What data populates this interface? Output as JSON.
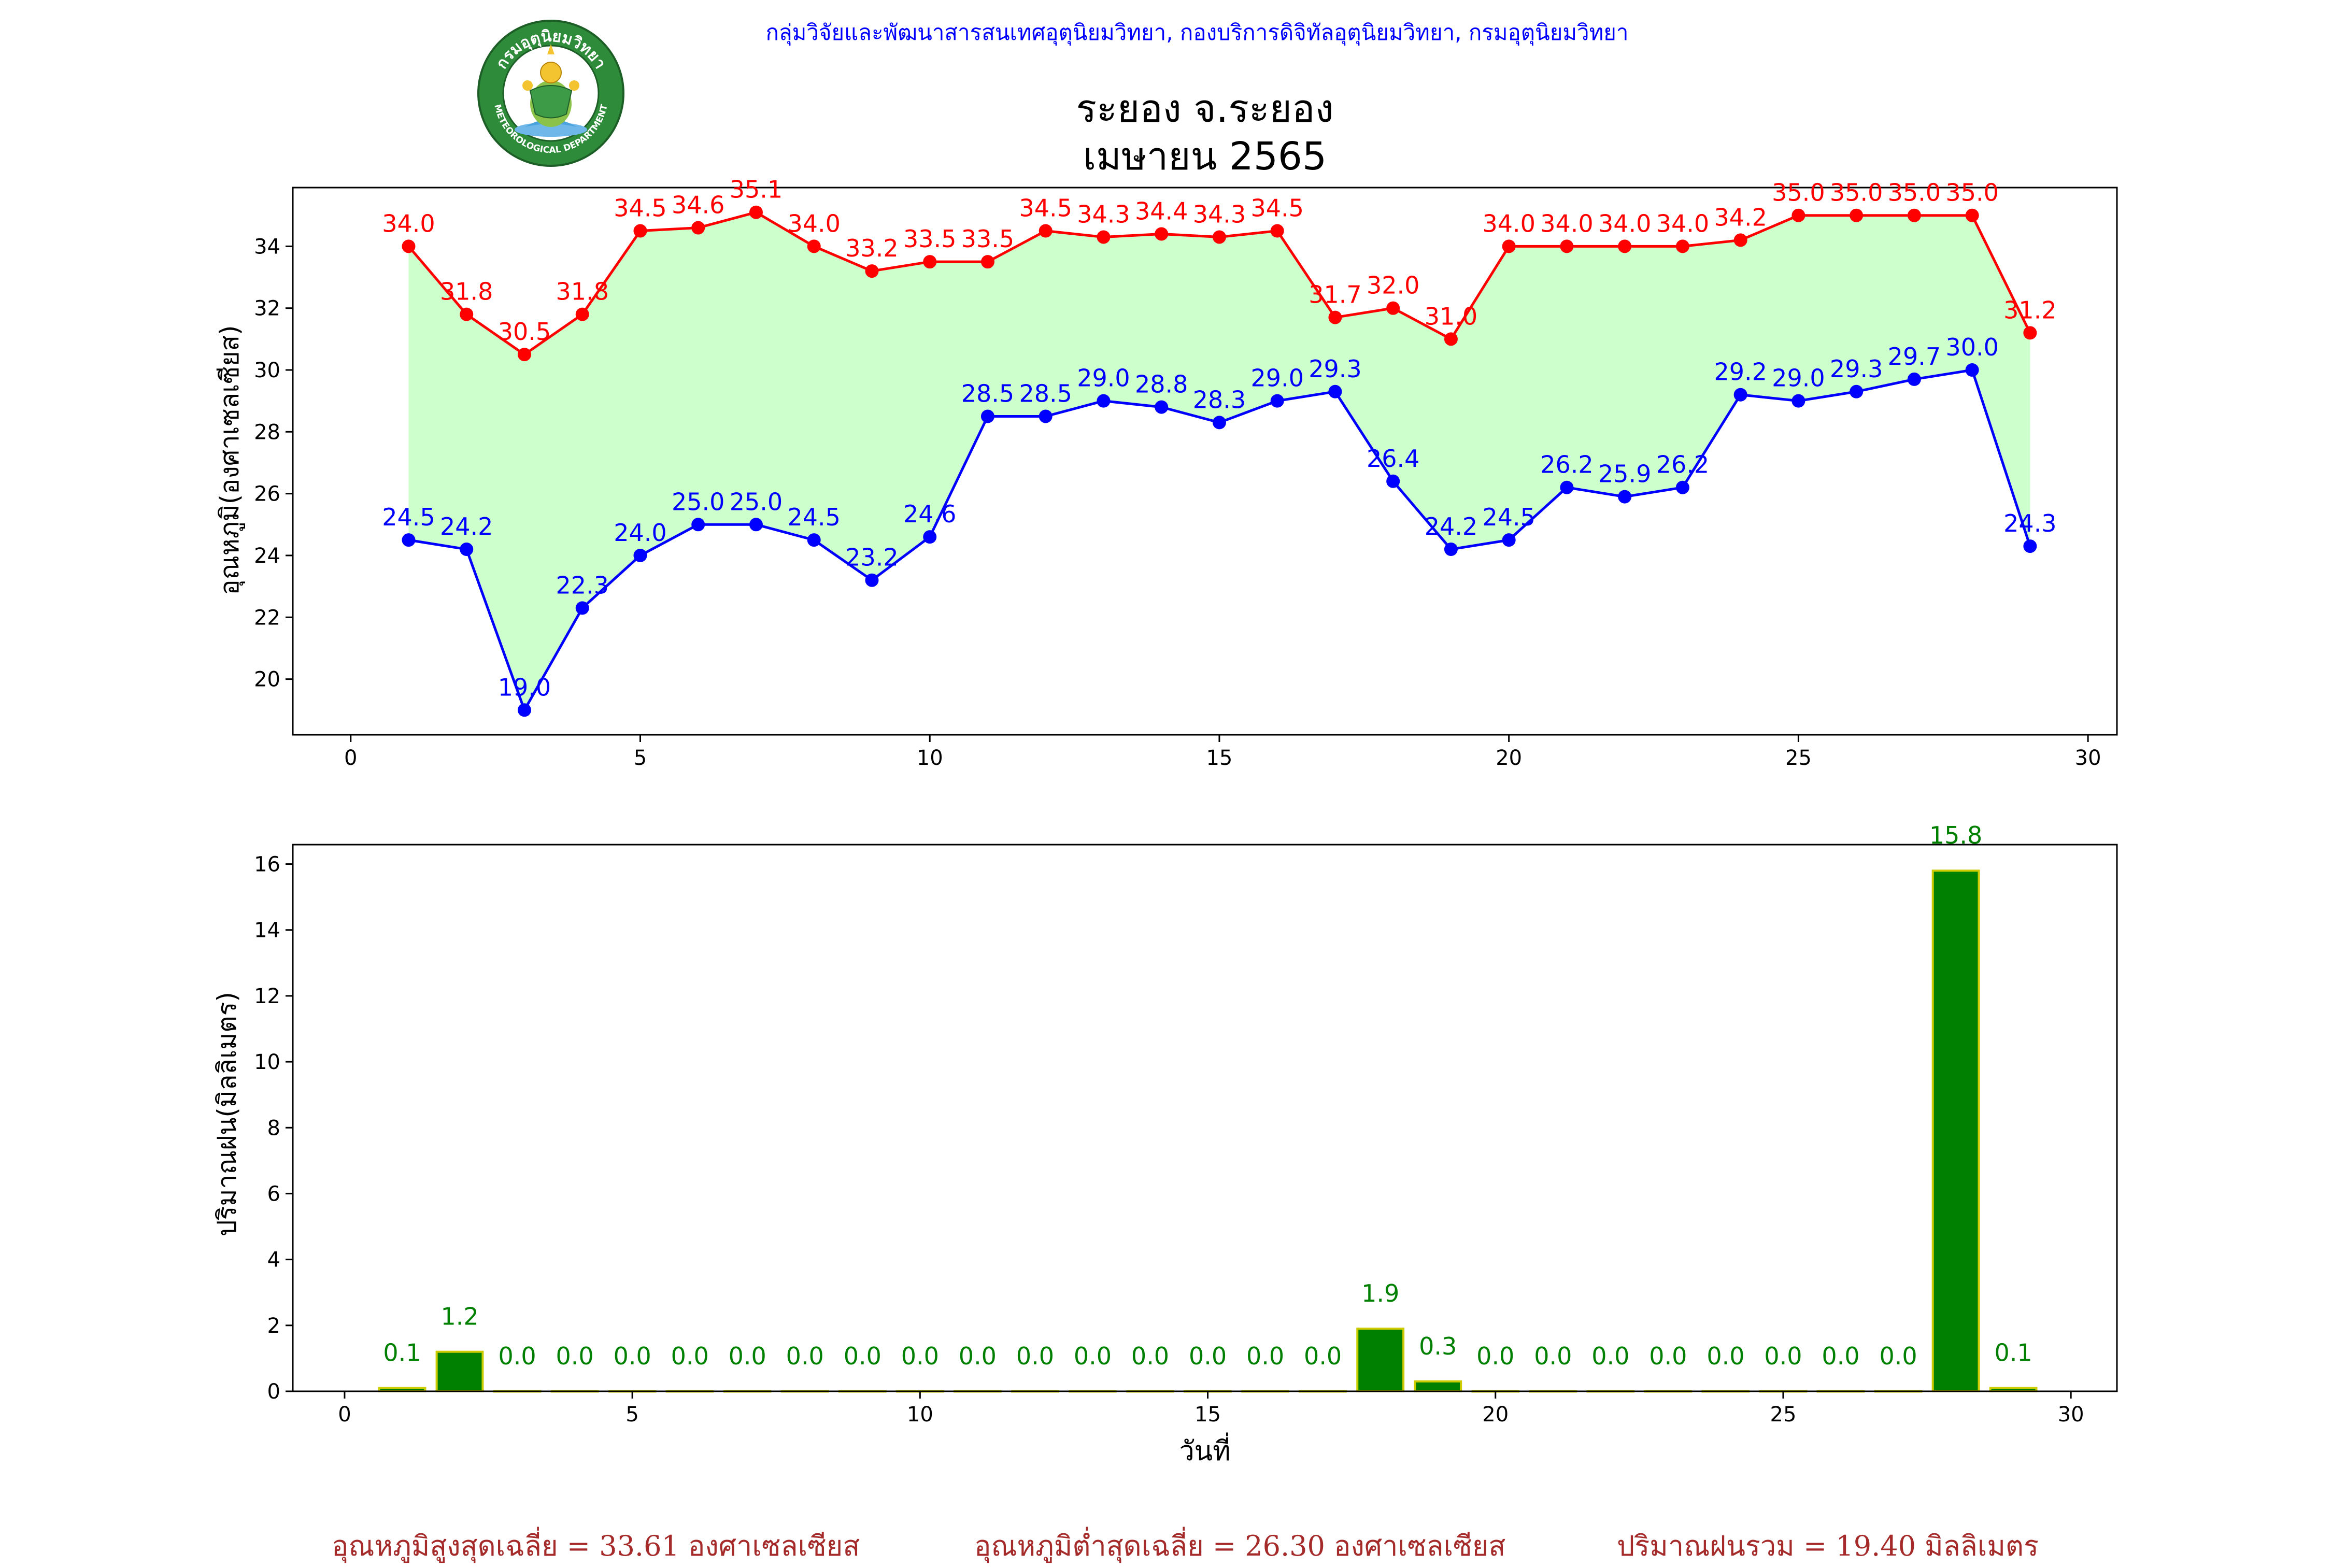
{
  "header": {
    "credit": "กลุ่มวิจัยและพัฒนาสารสนเทศอุตุนิยมวิทยา, กองบริการดิจิทัลอุตุนิยมวิทยา, กรมอุตุนิยมวิทยา",
    "logo_text_top": "กรมอุตุนิยมวิทยา",
    "logo_text_bottom": "METEOROLOGICAL DEPARTMENT"
  },
  "chart_data": [
    {
      "type": "line",
      "title": "ระยอง จ.ระยอง",
      "subtitle": "เมษายน 2565",
      "xlabel": "",
      "ylabel": "อุณหภูมิ(องศาเซลเซียส)",
      "xlim": [
        -1,
        30.5
      ],
      "ylim": [
        18.2,
        35.9
      ],
      "xticks": [
        0,
        5,
        10,
        15,
        20,
        25,
        30
      ],
      "yticks": [
        20,
        22,
        24,
        26,
        28,
        30,
        32,
        34
      ],
      "grid": false,
      "fill_between": true,
      "colors": {
        "max": "#ff0000",
        "min": "#0000ff",
        "fill": "#ccffcc"
      },
      "x": [
        1,
        2,
        3,
        4,
        5,
        6,
        7,
        8,
        9,
        10,
        11,
        12,
        13,
        14,
        15,
        16,
        17,
        18,
        19,
        20,
        21,
        22,
        23,
        24,
        25,
        26,
        27,
        28,
        29
      ],
      "series": [
        {
          "key": "max",
          "values": [
            34.0,
            31.8,
            30.5,
            31.8,
            34.5,
            34.6,
            35.1,
            34.0,
            33.2,
            33.5,
            33.5,
            34.5,
            34.3,
            34.4,
            34.3,
            34.5,
            31.7,
            32.0,
            31.0,
            34.0,
            34.0,
            34.0,
            34.0,
            34.2,
            35.0,
            35.0,
            35.0,
            35.0,
            31.2
          ]
        },
        {
          "key": "min",
          "values": [
            24.5,
            24.2,
            19.0,
            22.3,
            24.0,
            25.0,
            25.0,
            24.5,
            23.2,
            24.6,
            28.5,
            28.5,
            29.0,
            28.8,
            28.3,
            29.0,
            29.3,
            26.4,
            24.2,
            24.5,
            26.2,
            25.9,
            26.2,
            29.2,
            29.0,
            29.3,
            29.7,
            30.0,
            24.3
          ]
        }
      ]
    },
    {
      "type": "bar",
      "xlabel": "วันที่",
      "ylabel": "ปริมาณฝน(มิลลิเมตร)",
      "xlim": [
        -0.9,
        30.8
      ],
      "ylim": [
        0,
        16.59
      ],
      "xticks": [
        0,
        5,
        10,
        15,
        20,
        25,
        30
      ],
      "yticks": [
        0,
        2,
        4,
        6,
        8,
        10,
        12,
        14,
        16
      ],
      "colors": {
        "bar": "#008000",
        "edge": "#cccc00",
        "label": "#008000"
      },
      "x": [
        1,
        2,
        3,
        4,
        5,
        6,
        7,
        8,
        9,
        10,
        11,
        12,
        13,
        14,
        15,
        16,
        17,
        18,
        19,
        20,
        21,
        22,
        23,
        24,
        25,
        26,
        27,
        28,
        29
      ],
      "values": [
        0.1,
        1.2,
        0.0,
        0.0,
        0.0,
        0.0,
        0.0,
        0.0,
        0.0,
        0.0,
        0.0,
        0.0,
        0.0,
        0.0,
        0.0,
        0.0,
        0.0,
        1.9,
        0.3,
        0.0,
        0.0,
        0.0,
        0.0,
        0.0,
        0.0,
        0.0,
        0.0,
        15.8,
        0.1
      ]
    }
  ],
  "footer": {
    "avg_max": "อุณหภูมิสูงสุดเฉลี่ย = 33.61 องศาเซลเซียส",
    "avg_min": "อุณหภูมิต่ำสุดเฉลี่ย = 26.30 องศาเซลเซียส",
    "total_rain": "ปริมาณฝนรวม = 19.40 มิลลิเมตร"
  }
}
